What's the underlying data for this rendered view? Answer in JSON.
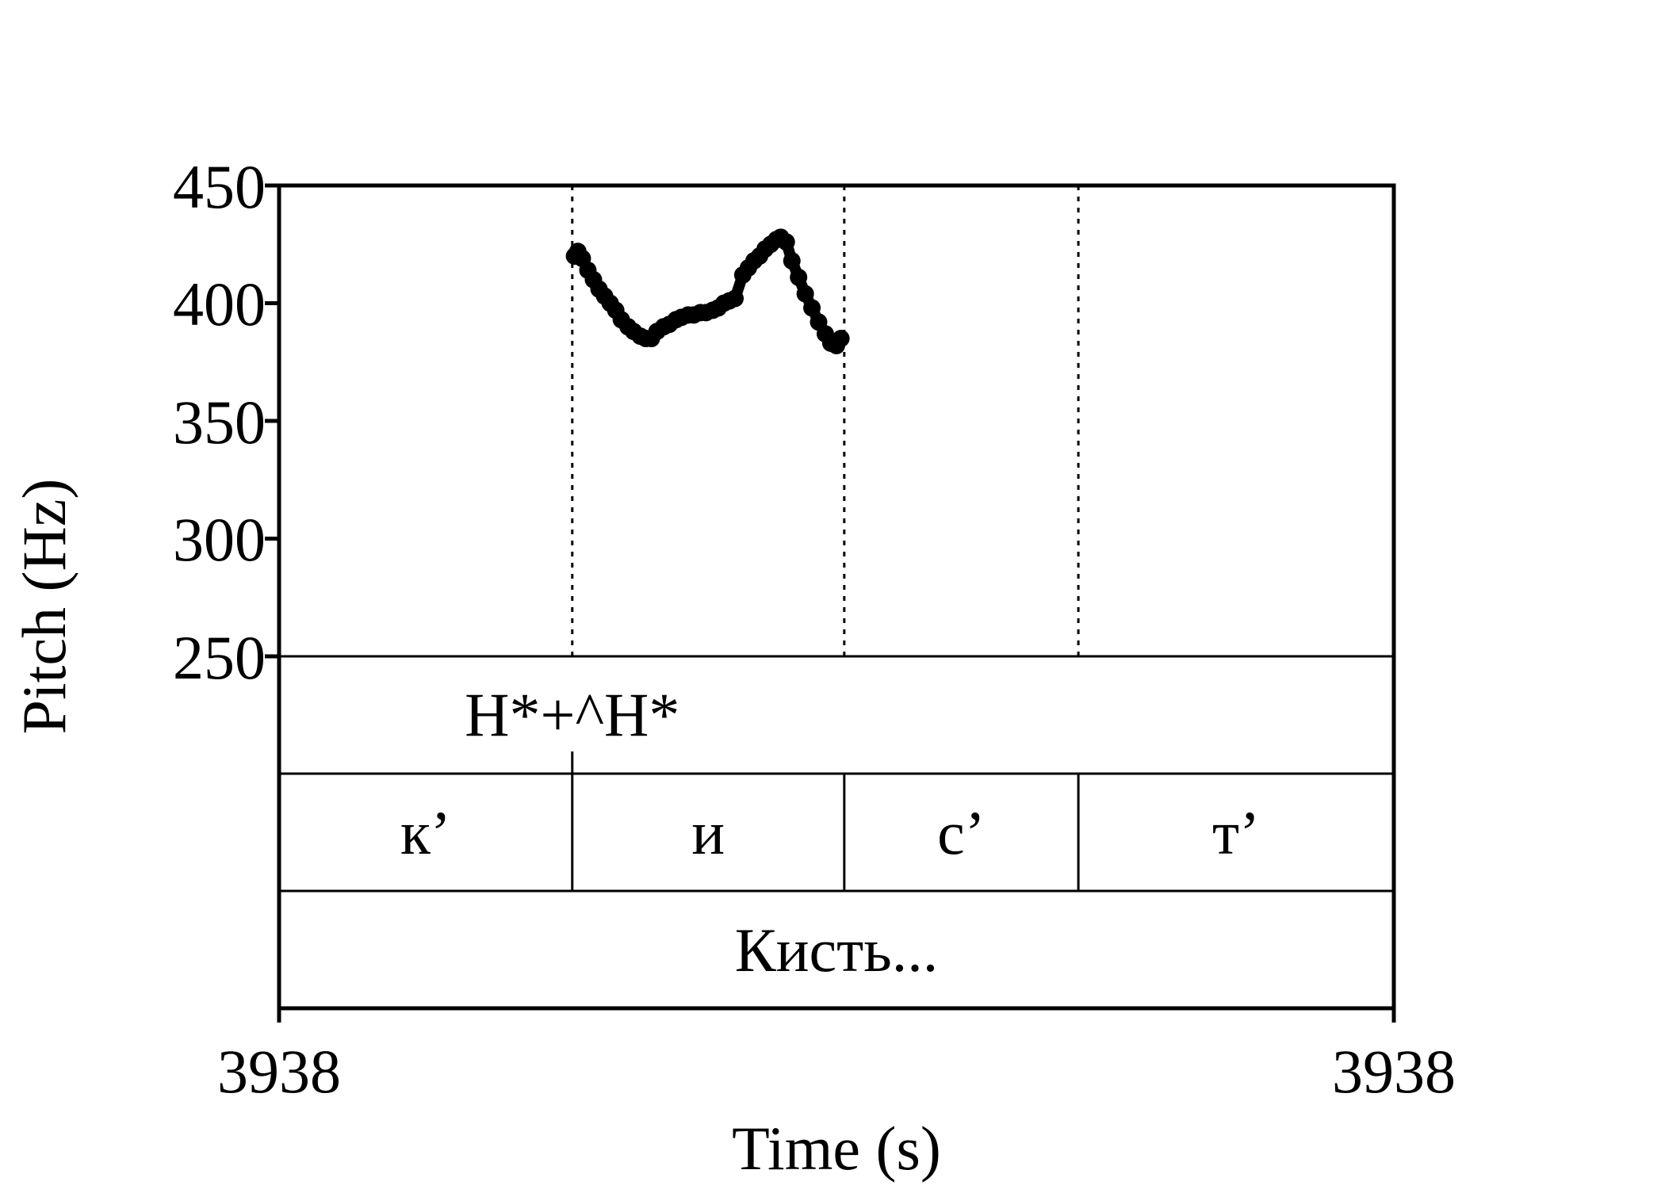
{
  "chart_data": {
    "type": "line",
    "xlabel": "Time (s)",
    "ylabel": "Pitch (Hz)",
    "ylim": [
      250,
      450
    ],
    "yticks": [
      "450",
      "400",
      "350",
      "300",
      "250"
    ],
    "xlim": [
      0,
      1
    ],
    "xticks": [
      {
        "position": "start",
        "label": "3938"
      },
      {
        "position": "end",
        "label": "3938"
      }
    ],
    "grid": false,
    "boundaries": [
      0.263,
      0.507,
      0.717
    ],
    "series": [
      {
        "points": [
          [
            0.265,
            420
          ],
          [
            0.268,
            422
          ],
          [
            0.272,
            419
          ],
          [
            0.277,
            414
          ],
          [
            0.282,
            410
          ],
          [
            0.287,
            406
          ],
          [
            0.292,
            403
          ],
          [
            0.297,
            400
          ],
          [
            0.302,
            397
          ],
          [
            0.307,
            393
          ],
          [
            0.313,
            390
          ],
          [
            0.318,
            388
          ],
          [
            0.324,
            386
          ],
          [
            0.329,
            385
          ],
          [
            0.334,
            385
          ],
          [
            0.339,
            388
          ],
          [
            0.345,
            390
          ],
          [
            0.35,
            391
          ],
          [
            0.356,
            393
          ],
          [
            0.361,
            394
          ],
          [
            0.367,
            395
          ],
          [
            0.372,
            395
          ],
          [
            0.378,
            396
          ],
          [
            0.383,
            396
          ],
          [
            0.389,
            397
          ],
          [
            0.394,
            398
          ],
          [
            0.399,
            400
          ],
          [
            0.404,
            401
          ],
          [
            0.409,
            402
          ],
          [
            0.416,
            412
          ],
          [
            0.421,
            415
          ],
          [
            0.426,
            418
          ],
          [
            0.431,
            420
          ],
          [
            0.436,
            423
          ],
          [
            0.441,
            425
          ],
          [
            0.446,
            427
          ],
          [
            0.45,
            428
          ],
          [
            0.455,
            426
          ],
          [
            0.46,
            418
          ],
          [
            0.466,
            411
          ],
          [
            0.472,
            404
          ],
          [
            0.478,
            398
          ],
          [
            0.484,
            392
          ],
          [
            0.49,
            387
          ],
          [
            0.495,
            383
          ],
          [
            0.5,
            382
          ],
          [
            0.504,
            385
          ]
        ]
      }
    ]
  },
  "tiers": {
    "tone": {
      "labels": [
        {
          "text": "H*+^H*",
          "center": 0.263
        }
      ]
    },
    "segments": {
      "labels": [
        {
          "text": "к’",
          "start": 0.0,
          "end": 0.263
        },
        {
          "text": "и",
          "start": 0.263,
          "end": 0.507
        },
        {
          "text": "с’",
          "start": 0.507,
          "end": 0.717
        },
        {
          "text": "т’",
          "start": 0.717,
          "end": 1.0
        }
      ]
    },
    "word": {
      "labels": [
        {
          "text": "Кисть...",
          "start": 0.0,
          "end": 1.0
        }
      ]
    }
  }
}
